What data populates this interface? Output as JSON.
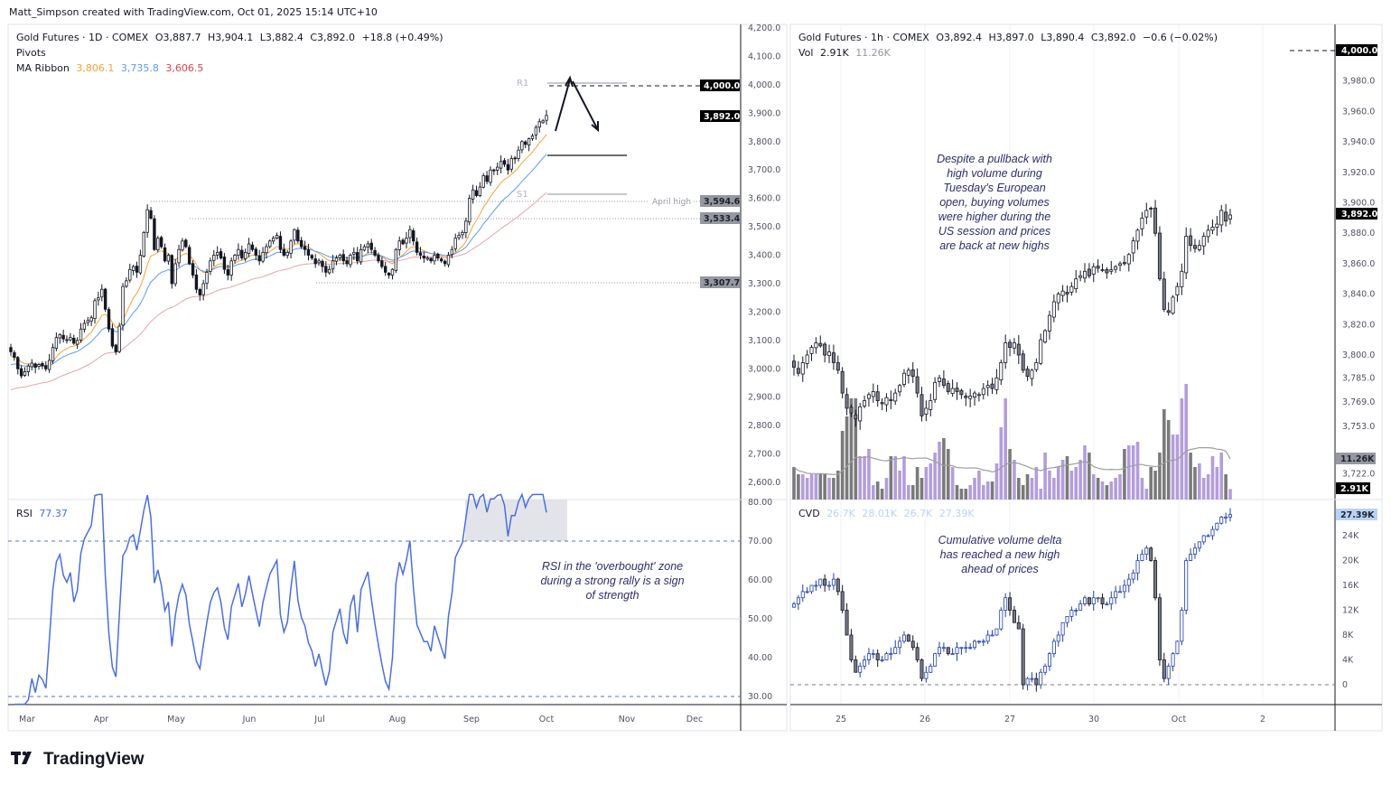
{
  "caption": "Matt_Simpson created with TradingView.com, Oct 01, 2025 15:14 UTC+10",
  "logo": {
    "text": "TradingView"
  },
  "colors": {
    "ma_fast": "#f7a23a",
    "ma_mid": "#5b9cf6",
    "ma_slow": "#d9434f",
    "rsi": "#4a6fdc",
    "vol_up": "#b39ddb",
    "vol_down": "#7a7a7a",
    "cvd_up": "#1e3fae",
    "cvd_label": "#b9d3f7"
  },
  "left": {
    "legend": {
      "symbol": "Gold Futures · 1D · COMEX",
      "o": "O3,887.7",
      "h": "H3,904.1",
      "l": "L3,882.4",
      "c": "C3,892.0",
      "chg": "+18.8 (+0.49%)",
      "pivots": "Pivots",
      "ma_label": "MA Ribbon",
      "ma1": "3,806.1",
      "ma2": "3,735.8",
      "ma3": "3,606.5"
    },
    "pivot_labels": {
      "r1": "R1",
      "s1": "S1"
    },
    "april_high_label": "April high",
    "badges": {
      "target": "4,000.0",
      "last": "3,892.0",
      "april_high": "3,594.6",
      "level2": "3,533.4",
      "level3": "3,307.7"
    },
    "rsi": {
      "label": "RSI",
      "value": "77.37"
    },
    "rsi_note": [
      "RSI in the 'overbought' zone",
      "during a strong rally is a sign",
      "of strength"
    ]
  },
  "right": {
    "legend": {
      "symbol": "Gold Futures · 1h · COMEX",
      "o": "O3,892.4",
      "h": "H3,897.0",
      "l": "L3,890.4",
      "c": "C3,892.0",
      "chg": "−0.6 (−0.02%)",
      "vol_label": "Vol",
      "vol": "2.91K",
      "vol_ma": "11.26K"
    },
    "badges": {
      "target": "4,000.0",
      "last": "3,892.0",
      "vol_ma": "11.26K",
      "vol": "2.91K",
      "cvd": "27.39K"
    },
    "cvd": {
      "label": "CVD",
      "v1": "26.7K",
      "v2": "28.01K",
      "v3": "26.7K",
      "v4": "27.39K"
    },
    "price_note": [
      "Despite a pullback  with",
      "high volume during",
      "Tuesday's European",
      "open, buying volumes",
      "were higher during the",
      "US session and prices",
      "are back at new highs"
    ],
    "cvd_note": [
      "Cumulative volume delta",
      "has reached a new high",
      "ahead of prices"
    ]
  },
  "chart_data": [
    {
      "type": "candlestick",
      "title": "Gold Futures · 1D · COMEX",
      "ylim": [
        2600,
        4200
      ],
      "y_ticks": [
        "4,200.0",
        "4,100.0",
        "4,000.0",
        "3,900.0",
        "3,800.0",
        "3,700.0",
        "3,600.0",
        "3,500.0",
        "3,400.0",
        "3,300.0",
        "3,200.0",
        "3,100.0",
        "3,000.0",
        "2,900.0",
        "2,800.0",
        "2,700.0",
        "2,600.0"
      ],
      "x_ticks": [
        "Mar",
        "Apr",
        "May",
        "Jun",
        "Jul",
        "Aug",
        "Sep",
        "Oct",
        "Nov",
        "Dec"
      ],
      "levels": {
        "R1": 4000.0,
        "P": 3755,
        "S1": 3620,
        "april_high": 3594.6,
        "level2": 3533.4,
        "level3": 3307.7
      },
      "closes": [
        3060,
        3040,
        3000,
        2975,
        2990,
        3010,
        3020,
        3005,
        3015,
        3010,
        3000,
        3030,
        3075,
        3110,
        3120,
        3105,
        3100,
        3110,
        3090,
        3100,
        3140,
        3160,
        3170,
        3180,
        3240,
        3250,
        3280,
        3210,
        3140,
        3080,
        3060,
        3150,
        3290,
        3310,
        3350,
        3360,
        3340,
        3400,
        3480,
        3560,
        3530,
        3420,
        3460,
        3430,
        3380,
        3400,
        3300,
        3370,
        3420,
        3450,
        3430,
        3370,
        3330,
        3280,
        3260,
        3300,
        3340,
        3380,
        3400,
        3410,
        3390,
        3350,
        3330,
        3380,
        3400,
        3420,
        3390,
        3410,
        3440,
        3420,
        3400,
        3380,
        3410,
        3430,
        3450,
        3460,
        3470,
        3420,
        3400,
        3410,
        3450,
        3490,
        3450,
        3430,
        3420,
        3400,
        3390,
        3370,
        3380,
        3360,
        3340,
        3350,
        3380,
        3390,
        3400,
        3380,
        3370,
        3400,
        3410,
        3380,
        3420,
        3430,
        3440,
        3420,
        3400,
        3380,
        3360,
        3340,
        3330,
        3350,
        3420,
        3450,
        3440,
        3460,
        3490,
        3450,
        3410,
        3400,
        3390,
        3390,
        3380,
        3400,
        3390,
        3380,
        3370,
        3400,
        3420,
        3460,
        3470,
        3480,
        3520,
        3600,
        3630,
        3610,
        3640,
        3680,
        3660,
        3700,
        3700,
        3710,
        3730,
        3720,
        3700,
        3740,
        3740,
        3770,
        3800,
        3790,
        3810,
        3820,
        3850,
        3870,
        3873,
        3892
      ],
      "ma_ribbon": [
        3806.1,
        3735.8,
        3606.5
      ],
      "rsi": {
        "ylim": [
          30,
          80
        ],
        "y_ticks": [
          "80.00",
          "70.00",
          "60.00",
          "50.00",
          "40.00",
          "30.00"
        ],
        "overbought": 70,
        "oversold": 30,
        "mid": 50,
        "last": 77.37
      }
    },
    {
      "type": "candlestick",
      "title": "Gold Futures · 1h · COMEX",
      "ylim": [
        3722,
        4000
      ],
      "y_ticks": [
        "3,980.0",
        "3,960.0",
        "3,940.0",
        "3,920.0",
        "3,900.0",
        "3,880.0",
        "3,860.0",
        "3,840.0",
        "3,820.0",
        "3,800.0",
        "3,785.0",
        "3,769.0",
        "3,753.0",
        "3,722.0"
      ],
      "x_ticks": [
        "25",
        "26",
        "27",
        "30",
        "Oct",
        "2"
      ],
      "closes": [
        3792,
        3788,
        3795,
        3800,
        3805,
        3808,
        3806,
        3800,
        3802,
        3795,
        3790,
        3775,
        3765,
        3762,
        3758,
        3766,
        3770,
        3774,
        3776,
        3770,
        3768,
        3772,
        3770,
        3775,
        3780,
        3788,
        3790,
        3786,
        3775,
        3760,
        3765,
        3770,
        3782,
        3785,
        3780,
        3776,
        3778,
        3776,
        3774,
        3772,
        3773,
        3775,
        3774,
        3778,
        3780,
        3778,
        3785,
        3795,
        3808,
        3805,
        3808,
        3800,
        3790,
        3786,
        3790,
        3795,
        3810,
        3816,
        3826,
        3835,
        3840,
        3842,
        3840,
        3845,
        3850,
        3852,
        3855,
        3852,
        3858,
        3857,
        3856,
        3854,
        3856,
        3858,
        3860,
        3860,
        3866,
        3875,
        3882,
        3890,
        3895,
        3896,
        3880,
        3850,
        3830,
        3828,
        3838,
        3845,
        3855,
        3878,
        3872,
        3870,
        3872,
        3878,
        3882,
        3884,
        3886,
        3895,
        3888,
        3892
      ],
      "volume_k": [
        9,
        7,
        7,
        6,
        7,
        7,
        7,
        7,
        6,
        6,
        8,
        19,
        23,
        28,
        28,
        12,
        12,
        14,
        4,
        5,
        3,
        6,
        12,
        12,
        8,
        12,
        4,
        4,
        9,
        6,
        9,
        10,
        13,
        16,
        17,
        14,
        9,
        4,
        3,
        3,
        4,
        6,
        8,
        4,
        5,
        5,
        10,
        20,
        28,
        14,
        11,
        6,
        4,
        7,
        6,
        9,
        3,
        13,
        8,
        6,
        9,
        11,
        12,
        8,
        9,
        11,
        15,
        13,
        7,
        6,
        5,
        4,
        5,
        6,
        7,
        14,
        15,
        15,
        16,
        6,
        3,
        9,
        8,
        13,
        25,
        22,
        18,
        18,
        28,
        32,
        13,
        9,
        10,
        6,
        7,
        12,
        9,
        13,
        7,
        2.91
      ],
      "volume_ma_k": 11.26,
      "cvd_k": [
        13,
        14,
        15,
        15,
        16,
        16,
        17,
        16,
        16,
        17,
        15,
        12,
        8,
        4,
        2,
        3,
        4,
        5,
        5,
        4,
        4,
        5,
        5,
        6,
        7,
        8,
        7,
        6,
        4,
        1,
        2,
        3,
        5,
        6,
        6,
        5,
        5,
        6,
        6,
        6,
        6,
        7,
        7,
        7,
        8,
        8,
        9,
        12,
        14,
        12,
        10,
        9,
        0,
        1,
        1,
        0,
        2,
        3,
        5,
        7,
        8,
        10,
        11,
        12,
        12,
        13,
        14,
        13,
        14,
        14,
        13,
        13,
        14,
        15,
        15,
        16,
        17,
        18,
        20,
        21,
        22,
        20,
        14,
        4,
        1,
        3,
        5,
        7,
        12,
        20,
        21,
        22,
        23,
        24,
        24,
        25,
        26,
        27,
        27,
        27.39
      ],
      "cvd_ticks": [
        "24K",
        "20K",
        "16K",
        "12K",
        "8K",
        "4K",
        "0"
      ]
    }
  ]
}
